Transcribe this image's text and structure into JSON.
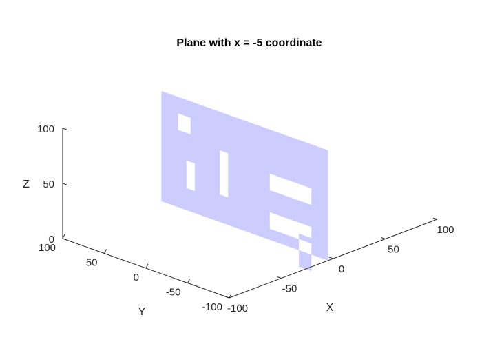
{
  "chart_data": {
    "type": "surface",
    "title": "Plane with x = -5 coordinate",
    "xlabel": "X",
    "ylabel": "Y",
    "zlabel": "Z",
    "plane_x": -5,
    "xlim": [
      -100,
      100
    ],
    "ylim": [
      -100,
      100
    ],
    "zlim": [
      0,
      100
    ],
    "x_ticks": [
      "-100",
      "-50",
      "0",
      "50",
      "100"
    ],
    "y_ticks": [
      "100",
      "50",
      "0",
      "-50",
      "-100"
    ],
    "z_ticks": [
      "0",
      "50",
      "100"
    ],
    "plane_color": "#ccccff",
    "grid": false,
    "plane_y_range": [
      -100,
      100
    ],
    "plane_z_range": [
      0,
      100
    ],
    "holes": [
      {
        "y": [
          65,
          80
        ],
        "z": [
          70,
          85
        ]
      },
      {
        "y": [
          60,
          70
        ],
        "z": [
          20,
          45
        ]
      },
      {
        "y": [
          20,
          30
        ],
        "z": [
          25,
          65
        ]
      },
      {
        "y": [
          -30,
          -80
        ],
        "z": [
          45,
          60
        ]
      },
      {
        "y": [
          -30,
          -80
        ],
        "z": [
          10,
          25
        ]
      },
      {
        "y": [
          -65,
          -80
        ],
        "z": [
          -15,
          15
        ]
      }
    ]
  }
}
